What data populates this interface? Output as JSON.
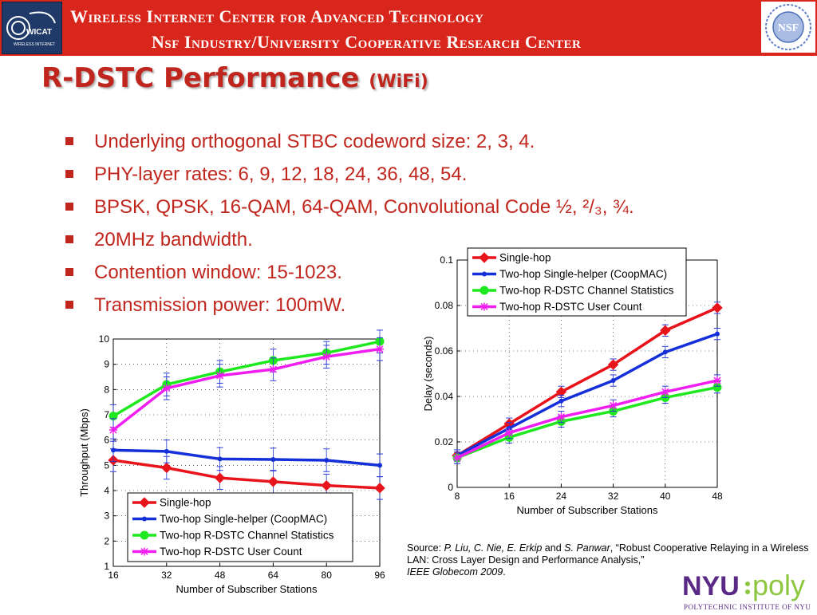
{
  "header": {
    "line1": "Wireless Internet Center for Advanced Technology",
    "line2": "Nsf Industry/University Cooperative Research Center",
    "left_logo_text": "WICAT",
    "left_logo_subtext": "WIRELESS INTERNET",
    "right_logo_text": "NSF"
  },
  "slide": {
    "title": "R-DSTC Performance",
    "title_suffix": "(WiFi)",
    "bullets": [
      "Underlying orthogonal STBC codeword size: 2, 3, 4.",
      "PHY-layer rates: 6, 9, 12, 18, 24, 36, 48, 54.",
      "BPSK, QPSK, 16-QAM, 64-QAM, Convolutional Code ½, ²/₃, ¾.",
      "20MHz bandwidth.",
      "Contention window: 15-1023.",
      "Transmission power: 100mW."
    ]
  },
  "source": {
    "prefix": "Source: ",
    "authors": "P. Liu, C. Nie, E. Erkip",
    "and": " and ",
    "author_last": "S. Panwar",
    "title": ", “Robust Cooperative Relaying in a Wireless LAN: Cross Layer Design and Performance Analysis,”",
    "venue": "IEEE Globecom 2009",
    "end": "."
  },
  "footer": {
    "logo_nyu": "NYU",
    "logo_poly": "poly",
    "logo_caption": "POLYTECHNIC INSTITUTE OF NYU"
  },
  "colors": {
    "banner": "#d9261c",
    "accent_text": "#c0261d",
    "series_single_hop": "#e8141c",
    "series_coopmac": "#1530d8",
    "series_channel_stats": "#1ee81e",
    "series_user_count": "#f01ef0",
    "errorbar": "#2a3bd6"
  },
  "chart_data": [
    {
      "type": "line",
      "title": "",
      "xlabel": "Number of Subscriber Stations",
      "ylabel": "Throughput (Mbps)",
      "x": [
        16,
        32,
        48,
        64,
        80,
        96
      ],
      "xlim": [
        16,
        96
      ],
      "ylim": [
        1,
        10
      ],
      "xticks": [
        "16",
        "32",
        "48",
        "64",
        "80",
        "96"
      ],
      "yticks": [
        "1",
        "2",
        "3",
        "4",
        "5",
        "6",
        "7",
        "8",
        "9",
        "10"
      ],
      "legend_position": "bottom",
      "series": [
        {
          "name": "Single-hop",
          "marker": "diamond",
          "values": [
            5.2,
            4.9,
            4.5,
            4.35,
            4.2,
            4.1
          ]
        },
        {
          "name": "Two-hop Single-helper (CoopMAC)",
          "marker": "dot",
          "values": [
            5.6,
            5.55,
            5.25,
            5.23,
            5.2,
            5.0
          ]
        },
        {
          "name": "Two-hop R-DSTC Channel Statistics",
          "marker": "circle",
          "values": [
            6.95,
            8.2,
            8.7,
            9.15,
            9.45,
            9.9
          ]
        },
        {
          "name": "Two-hop R-DSTC User Count",
          "marker": "star",
          "values": [
            6.4,
            8.05,
            8.55,
            8.8,
            9.3,
            9.6
          ]
        }
      ]
    },
    {
      "type": "line",
      "title": "",
      "xlabel": "Number of Subscriber Stations",
      "ylabel": "Delay (seconds)",
      "x": [
        8,
        16,
        24,
        32,
        40,
        48
      ],
      "xlim": [
        8,
        48
      ],
      "ylim": [
        0,
        0.1
      ],
      "xticks": [
        "8",
        "16",
        "24",
        "32",
        "40",
        "48"
      ],
      "yticks": [
        "0",
        "0.02",
        "0.04",
        "0.06",
        "0.08",
        "0.1"
      ],
      "legend_position": "top",
      "series": [
        {
          "name": "Single-hop",
          "marker": "diamond",
          "values": [
            0.014,
            0.028,
            0.042,
            0.054,
            0.069,
            0.079
          ]
        },
        {
          "name": "Two-hop Single-helper (CoopMAC)",
          "marker": "dot",
          "values": [
            0.014,
            0.026,
            0.038,
            0.047,
            0.0595,
            0.0675
          ]
        },
        {
          "name": "Two-hop R-DSTC Channel Statistics",
          "marker": "circle",
          "values": [
            0.013,
            0.022,
            0.029,
            0.0335,
            0.0395,
            0.044
          ]
        },
        {
          "name": "Two-hop R-DSTC User Count",
          "marker": "star",
          "values": [
            0.013,
            0.024,
            0.031,
            0.036,
            0.042,
            0.047
          ]
        }
      ]
    }
  ]
}
